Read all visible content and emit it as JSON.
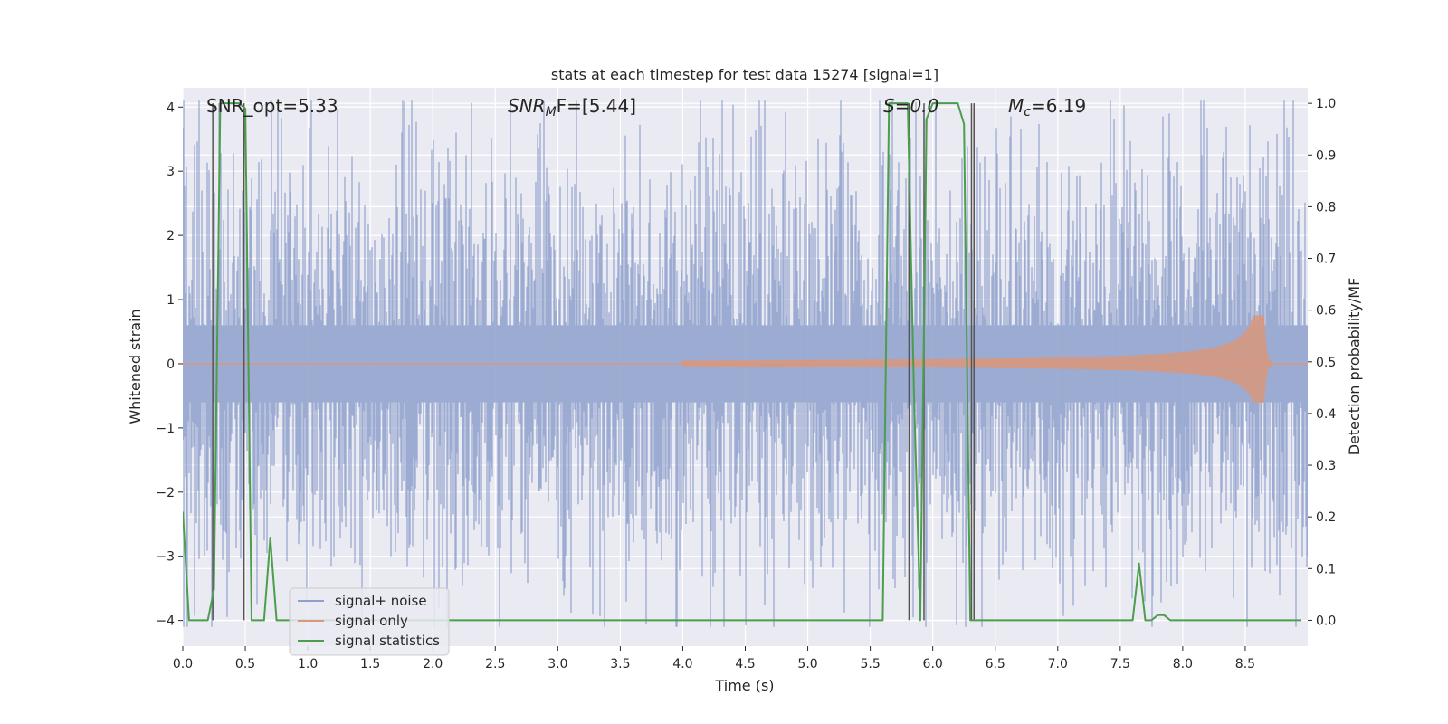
{
  "chart_data": {
    "type": "line",
    "title": "stats at each timestep for test data 15274 [signal=1]",
    "xlabel": "Time (s)",
    "ylabel_left": "Whitened strain",
    "ylabel_right": "Detection probability/MF",
    "xlim": [
      0,
      9
    ],
    "ylim_left": [
      -4.4,
      4.3
    ],
    "ylim_right": [
      -0.05,
      1.03
    ],
    "x_ticks": [
      "0.0",
      "0.5",
      "1.0",
      "1.5",
      "2.0",
      "2.5",
      "3.0",
      "3.5",
      "4.0",
      "4.5",
      "5.0",
      "5.5",
      "6.0",
      "6.5",
      "7.0",
      "7.5",
      "8.0",
      "8.5"
    ],
    "y_ticks_left": [
      "4",
      "3",
      "2",
      "1",
      "0",
      "−1",
      "−2",
      "−3",
      "−4"
    ],
    "y_ticks_right": [
      "1.0",
      "0.9",
      "0.8",
      "0.7",
      "0.6",
      "0.5",
      "0.4",
      "0.3",
      "0.2",
      "0.1",
      "0.0"
    ],
    "annotations": {
      "snr_opt": "SNR_opt=5.33",
      "snr_mf_main": "SNR",
      "snr_mf_sub": "M",
      "snr_mf_rest": "F=[5.44]",
      "s_val": "S=0.0",
      "mc_main": "M",
      "mc_sub": "c",
      "mc_rest": "=6.19"
    },
    "series": [
      {
        "name": "signal+ noise",
        "color": "#8da0cb",
        "description": "whitened strain noise, approx amplitude range -4 to 4",
        "amplitude": 1.8
      },
      {
        "name": "signal only",
        "color": "#d9977c",
        "description": "chirp signal growing towards merger near t=8.65 s",
        "peak_time": 8.65,
        "peak_amplitude": 0.75
      },
      {
        "name": "signal statistics",
        "color": "#4c9e4c",
        "x": [
          0.0,
          0.05,
          0.1,
          0.15,
          0.2,
          0.25,
          0.3,
          0.35,
          0.4,
          0.45,
          0.5,
          0.55,
          0.6,
          0.65,
          0.7,
          0.75,
          0.8,
          0.85,
          0.9,
          5.5,
          5.55,
          5.6,
          5.65,
          5.7,
          5.75,
          5.8,
          5.85,
          5.9,
          5.95,
          6.0,
          6.05,
          6.1,
          6.15,
          6.2,
          6.25,
          6.3,
          6.35,
          6.4,
          7.55,
          7.6,
          7.65,
          7.7,
          7.75,
          7.8,
          7.85,
          7.9,
          7.95,
          8.0,
          8.05,
          8.5,
          8.55,
          8.6,
          8.65,
          8.7,
          8.75,
          8.8,
          8.85,
          8.9,
          8.95
        ],
        "y": [
          0.21,
          0.0,
          0.0,
          0.0,
          0.0,
          0.06,
          1.0,
          1.0,
          1.0,
          1.0,
          0.99,
          0.0,
          0.0,
          0.0,
          0.16,
          0.0,
          0.0,
          0.0,
          0.0,
          0.0,
          0.0,
          0.0,
          1.0,
          1.0,
          1.0,
          1.0,
          0.44,
          0.0,
          0.97,
          1.0,
          1.0,
          1.0,
          1.0,
          1.0,
          0.96,
          0.0,
          0.0,
          0.0,
          0.0,
          0.0,
          0.11,
          0.0,
          0.0,
          0.01,
          0.01,
          0.0,
          0.0,
          0.0,
          0.0,
          0.0,
          0.0,
          0.0,
          0.0,
          0.0,
          0.0,
          0.0,
          0.0,
          0.0,
          0.0
        ]
      },
      {
        "name": "markers",
        "color": "#555555",
        "description": "vertical gray lines at event boundaries",
        "x": [
          0.24,
          0.49,
          5.81,
          5.93,
          6.31,
          6.33
        ]
      }
    ],
    "legend": {
      "placement": "lower-left",
      "entries": [
        "signal+ noise",
        "signal only",
        "signal statistics"
      ]
    },
    "grid": true
  },
  "colors": {
    "axes_bg": "#eaeaf2",
    "grid": "#ffffff",
    "noise": "#8da0cb",
    "signal": "#d9977c",
    "stats": "#4c9e4c",
    "markers": "#555555"
  }
}
